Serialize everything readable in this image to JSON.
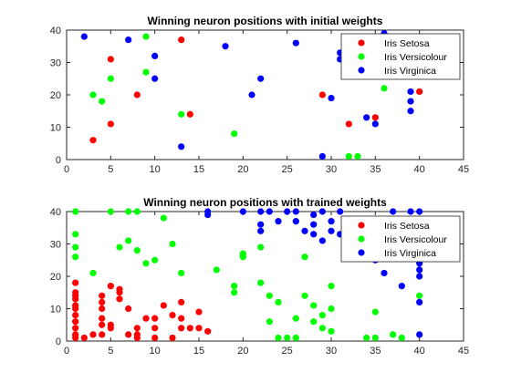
{
  "chart_data": [
    {
      "type": "scatter",
      "title": "Winning neuron positions with initial weights",
      "xlabel": "",
      "ylabel": "",
      "xlim": [
        0,
        45
      ],
      "ylim": [
        0,
        40
      ],
      "xticks": [
        0,
        5,
        10,
        15,
        20,
        25,
        30,
        35,
        40,
        45
      ],
      "yticks": [
        0,
        10,
        20,
        30,
        40
      ],
      "grid": false,
      "legend_position": "top-right",
      "series": [
        {
          "name": "Iris Setosa",
          "color": "#ff0000",
          "points": [
            [
              5,
              31
            ],
            [
              8,
              20
            ],
            [
              13,
              37
            ],
            [
              14,
              14
            ],
            [
              5,
              11
            ],
            [
              3,
              6
            ],
            [
              29,
              20
            ],
            [
              32,
              11
            ],
            [
              35,
              13
            ],
            [
              40,
              21
            ]
          ]
        },
        {
          "name": "Iris Versicolour",
          "color": "#00ff00",
          "points": [
            [
              9,
              38
            ],
            [
              5,
              25
            ],
            [
              9,
              27
            ],
            [
              3,
              20
            ],
            [
              4,
              18
            ],
            [
              13,
              14
            ],
            [
              19,
              8
            ],
            [
              32,
              1
            ],
            [
              33,
              1
            ],
            [
              36,
              22
            ]
          ]
        },
        {
          "name": "Iris Virginica",
          "color": "#0000ff",
          "points": [
            [
              2,
              38
            ],
            [
              7,
              37
            ],
            [
              10,
              32
            ],
            [
              10,
              25
            ],
            [
              18,
              35
            ],
            [
              26,
              36
            ],
            [
              22,
              25
            ],
            [
              21,
              20
            ],
            [
              13,
              4
            ],
            [
              29,
              1
            ],
            [
              30,
              19
            ],
            [
              31,
              33
            ],
            [
              31,
              31
            ],
            [
              32,
              31
            ],
            [
              34,
              13
            ],
            [
              35,
              11
            ],
            [
              36,
              39
            ],
            [
              39,
              21
            ],
            [
              39,
              18
            ],
            [
              39,
              15
            ]
          ]
        }
      ]
    },
    {
      "type": "scatter",
      "title": "Winning neuron positions with trained weights",
      "xlabel": "",
      "ylabel": "",
      "xlim": [
        0,
        45
      ],
      "ylim": [
        0,
        40
      ],
      "xticks": [
        0,
        5,
        10,
        15,
        20,
        25,
        30,
        35,
        40,
        45
      ],
      "yticks": [
        0,
        10,
        20,
        30,
        40
      ],
      "grid": false,
      "legend_position": "top-right",
      "series": [
        {
          "name": "Iris Setosa",
          "color": "#ff0000",
          "points": [
            [
              1,
              18
            ],
            [
              1,
              15
            ],
            [
              1,
              14
            ],
            [
              1,
              13
            ],
            [
              1,
              11
            ],
            [
              1,
              10
            ],
            [
              1,
              8
            ],
            [
              1,
              6
            ],
            [
              1,
              4
            ],
            [
              1,
              2
            ],
            [
              1,
              1
            ],
            [
              2,
              1
            ],
            [
              3,
              2
            ],
            [
              4,
              14
            ],
            [
              4,
              12
            ],
            [
              4,
              10
            ],
            [
              4,
              7
            ],
            [
              4,
              5
            ],
            [
              4,
              2
            ],
            [
              5,
              17
            ],
            [
              5,
              5
            ],
            [
              5,
              4
            ],
            [
              6,
              16
            ],
            [
              6,
              15
            ],
            [
              6,
              13
            ],
            [
              7,
              10
            ],
            [
              7,
              2
            ],
            [
              8,
              4
            ],
            [
              8,
              2
            ],
            [
              8,
              1
            ],
            [
              9,
              7
            ],
            [
              10,
              7
            ],
            [
              10,
              4
            ],
            [
              10,
              1
            ],
            [
              11,
              11
            ],
            [
              12,
              8
            ],
            [
              12,
              1
            ],
            [
              13,
              12
            ],
            [
              13,
              7
            ],
            [
              13,
              4
            ],
            [
              14,
              4
            ],
            [
              15,
              9
            ],
            [
              15,
              4
            ],
            [
              16,
              3
            ]
          ]
        },
        {
          "name": "Iris Versicolour",
          "color": "#00ff00",
          "points": [
            [
              1,
              40
            ],
            [
              1,
              33
            ],
            [
              1,
              29
            ],
            [
              1,
              26
            ],
            [
              3,
              21
            ],
            [
              5,
              40
            ],
            [
              6,
              29
            ],
            [
              7,
              31
            ],
            [
              7,
              40
            ],
            [
              8,
              40
            ],
            [
              8,
              28
            ],
            [
              9,
              24
            ],
            [
              10,
              25
            ],
            [
              11,
              38
            ],
            [
              12,
              30
            ],
            [
              13,
              21
            ],
            [
              17,
              22
            ],
            [
              19,
              17
            ],
            [
              19,
              15
            ],
            [
              20,
              27
            ],
            [
              20,
              26
            ],
            [
              22,
              29
            ],
            [
              22,
              18
            ],
            [
              23,
              14
            ],
            [
              23,
              6
            ],
            [
              24,
              12
            ],
            [
              24,
              1
            ],
            [
              25,
              1
            ],
            [
              26,
              1
            ],
            [
              26,
              7
            ],
            [
              27,
              14
            ],
            [
              27,
              26
            ],
            [
              28,
              11
            ],
            [
              28,
              6
            ],
            [
              29,
              4
            ],
            [
              29,
              8
            ],
            [
              30,
              10
            ],
            [
              30,
              17
            ],
            [
              30,
              3
            ],
            [
              34,
              1
            ],
            [
              35,
              9
            ],
            [
              35,
              1
            ],
            [
              37,
              2
            ],
            [
              38,
              1
            ],
            [
              40,
              14
            ]
          ]
        },
        {
          "name": "Iris Virginica",
          "color": "#0000ff",
          "points": [
            [
              16,
              40
            ],
            [
              16,
              39
            ],
            [
              20,
              40
            ],
            [
              22,
              40
            ],
            [
              22,
              36
            ],
            [
              22,
              34
            ],
            [
              23,
              40
            ],
            [
              24,
              37
            ],
            [
              25,
              40
            ],
            [
              26,
              40
            ],
            [
              26,
              37
            ],
            [
              27,
              34
            ],
            [
              28,
              39
            ],
            [
              28,
              36
            ],
            [
              28,
              33
            ],
            [
              29,
              40
            ],
            [
              29,
              31
            ],
            [
              30,
              37
            ],
            [
              30,
              34
            ],
            [
              31,
              40
            ],
            [
              31,
              33
            ],
            [
              32,
              28
            ],
            [
              33,
              35
            ],
            [
              33,
              32
            ],
            [
              34,
              30
            ],
            [
              34,
              26
            ],
            [
              35,
              25
            ],
            [
              36,
              29
            ],
            [
              36,
              33
            ],
            [
              36,
              21
            ],
            [
              37,
              40
            ],
            [
              37,
              35
            ],
            [
              38,
              28
            ],
            [
              38,
              17
            ],
            [
              39,
              40
            ],
            [
              39,
              33
            ],
            [
              40,
              40
            ],
            [
              40,
              24
            ],
            [
              40,
              22
            ],
            [
              40,
              20
            ],
            [
              40,
              12
            ],
            [
              40,
              2
            ]
          ]
        }
      ]
    }
  ]
}
